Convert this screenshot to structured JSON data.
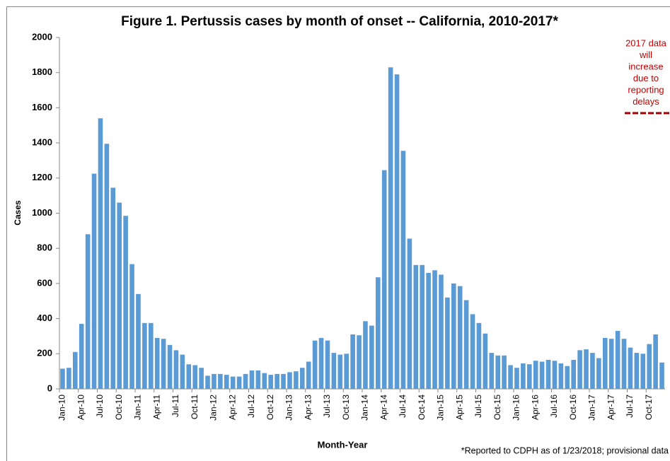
{
  "chart_data": {
    "type": "bar",
    "title": "Figure 1. Pertussis cases by month of onset -- California, 2010-2017*",
    "y_label": "Cases",
    "x_label": "Month-Year",
    "footnote": "*Reported to CDPH as of 1/23/2018; provisional data",
    "annotation": [
      "2017 data",
      "will",
      "increase",
      "due to",
      "reporting",
      "delays"
    ],
    "annotation_color": "#c00000",
    "color": "#5b9bd5",
    "ylim": [
      0,
      2000
    ],
    "yticks": [
      0,
      200,
      400,
      600,
      800,
      1000,
      1200,
      1400,
      1600,
      1800,
      2000
    ],
    "grid": false,
    "categories": [
      "Jan-10",
      null,
      null,
      "Apr-10",
      null,
      null,
      "Jul-10",
      null,
      null,
      "Oct-10",
      null,
      null,
      "Jan-11",
      null,
      null,
      "Apr-11",
      null,
      null,
      "Jul-11",
      null,
      null,
      "Oct-11",
      null,
      null,
      "Jan-12",
      null,
      null,
      "Apr-12",
      null,
      null,
      "Jul-12",
      null,
      null,
      "Oct-12",
      null,
      null,
      "Jan-13",
      null,
      null,
      "Apr-13",
      null,
      null,
      "Jul-13",
      null,
      null,
      "Oct-13",
      null,
      null,
      "Jan-14",
      null,
      null,
      "Apr-14",
      null,
      null,
      "Jul-14",
      null,
      null,
      "Oct-14",
      null,
      null,
      "Jan-15",
      null,
      null,
      "Apr-15",
      null,
      null,
      "Jul-15",
      null,
      null,
      "Oct-15",
      null,
      null,
      "Jan-16",
      null,
      null,
      "Apr-16",
      null,
      null,
      "Jul-16",
      null,
      null,
      "Oct-16",
      null,
      null,
      "Jan-17",
      null,
      null,
      "Apr-17",
      null,
      null,
      "Jul-17",
      null,
      null,
      "Oct-17",
      null,
      null
    ],
    "values": [
      115,
      120,
      210,
      370,
      880,
      1225,
      1540,
      1395,
      1145,
      1060,
      985,
      710,
      540,
      375,
      375,
      290,
      285,
      250,
      220,
      195,
      140,
      135,
      120,
      75,
      85,
      85,
      80,
      70,
      70,
      85,
      105,
      105,
      90,
      80,
      85,
      85,
      95,
      100,
      120,
      155,
      275,
      290,
      275,
      205,
      195,
      200,
      310,
      305,
      385,
      360,
      635,
      1245,
      1830,
      1790,
      1355,
      855,
      705,
      705,
      660,
      675,
      650,
      520,
      600,
      585,
      505,
      425,
      375,
      315,
      205,
      190,
      190,
      135,
      120,
      145,
      140,
      160,
      155,
      165,
      160,
      145,
      130,
      165,
      220,
      225,
      205,
      175,
      290,
      285,
      330,
      285,
      235,
      205,
      200,
      255,
      310,
      150
    ]
  }
}
